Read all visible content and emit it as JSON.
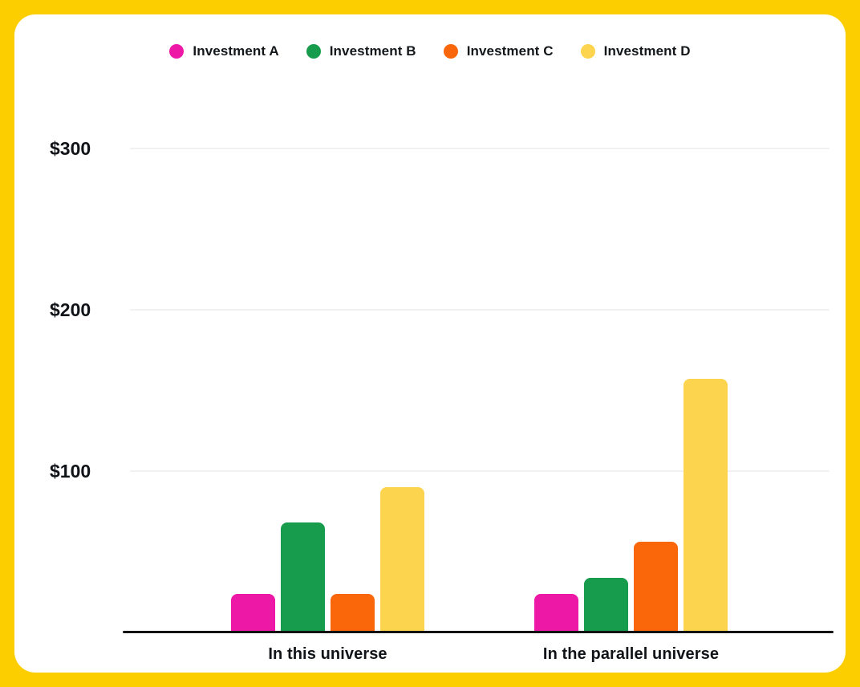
{
  "page": {
    "background_color": "#FCCE00",
    "card_color": "#FFFFFF",
    "text_color": "#101317"
  },
  "legend": {
    "position": "top",
    "items": [
      {
        "label": "Investment A",
        "color": "#ED18A5"
      },
      {
        "label": "Investment B",
        "color": "#179B4D"
      },
      {
        "label": "Investment C",
        "color": "#FA660A"
      },
      {
        "label": "Investment D",
        "color": "#FDD44E"
      }
    ]
  },
  "chart_data": {
    "type": "bar",
    "title": "",
    "categories": [
      "In this universe",
      "In the parallel universe"
    ],
    "series": [
      {
        "name": "Investment A",
        "color": "#ED18A5",
        "values": [
          24,
          24
        ]
      },
      {
        "name": "Investment B",
        "color": "#179B4D",
        "values": [
          68,
          34
        ]
      },
      {
        "name": "Investment C",
        "color": "#FA660A",
        "values": [
          24,
          56
        ]
      },
      {
        "name": "Investment D",
        "color": "#FDD44E",
        "values": [
          90,
          157
        ]
      }
    ],
    "ylabel": "",
    "xlabel": "",
    "ylim": [
      0,
      300
    ],
    "ytick_values": [
      300,
      200,
      100
    ],
    "ytick_labels": [
      "$300",
      "$200",
      "$100"
    ],
    "grid": "horizontal",
    "gridline_color": "#F1F1F1",
    "axis_color": "#121212",
    "legend_position": "top"
  }
}
